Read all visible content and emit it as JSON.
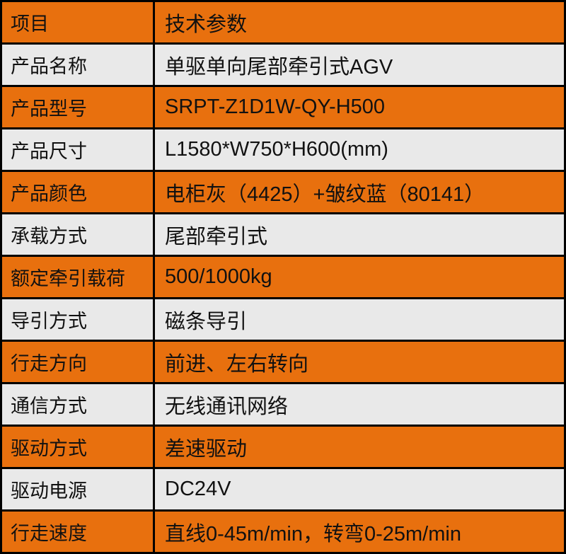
{
  "colors": {
    "orange": "#E8700E",
    "gray": "#E9E9E9",
    "border": "#000000"
  },
  "header": {
    "item": "项目",
    "spec": "技术参数"
  },
  "rows": [
    {
      "label": "产品名称",
      "value": "单驱单向尾部牵引式AGV"
    },
    {
      "label": "产品型号",
      "value": "SRPT-Z1D1W-QY-H500"
    },
    {
      "label": "产品尺寸",
      "value": "L1580*W750*H600(mm)"
    },
    {
      "label": "产品颜色",
      "value": "电柜灰（4425）+皱纹蓝（80141）"
    },
    {
      "label": "承载方式",
      "value": "尾部牵引式"
    },
    {
      "label": "额定牵引载荷",
      "value": "500/1000kg"
    },
    {
      "label": "导引方式",
      "value": "磁条导引"
    },
    {
      "label": "行走方向",
      "value": "前进、左右转向"
    },
    {
      "label": "通信方式",
      "value": "无线通讯网络"
    },
    {
      "label": "驱动方式",
      "value": "差速驱动"
    },
    {
      "label": "驱动电源",
      "value": "DC24V"
    },
    {
      "label": "行走速度",
      "value": "直线0-45m/min，转弯0-25m/min"
    }
  ]
}
